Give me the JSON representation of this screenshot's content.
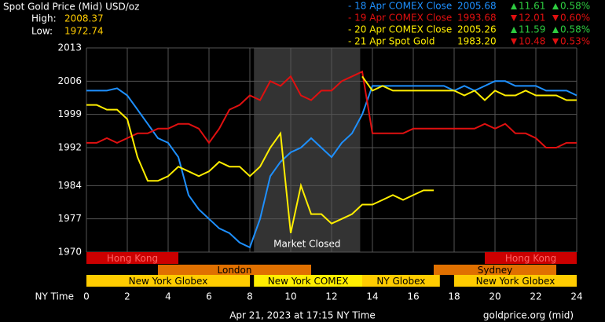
{
  "chart_data": {
    "type": "line",
    "title": "Spot Gold Price (Mid) USD/oz",
    "high_label": "High:",
    "high": "2008.37",
    "low_label": "Low:",
    "low": "1972.74",
    "x_label": "NY Time",
    "footer": "Apr 21, 2023 at 17:15 NY Time",
    "source": "goldprice.org (mid)",
    "xlim": [
      0,
      24
    ],
    "xticks": [
      0,
      2,
      4,
      6,
      8,
      10,
      12,
      14,
      16,
      18,
      20,
      22,
      24
    ],
    "ylim": [
      1970,
      2013
    ],
    "yticks": [
      2013,
      2006,
      1999,
      1992,
      1984,
      1977,
      1970
    ],
    "grid": true,
    "x": [
      0,
      0.5,
      1,
      1.5,
      2,
      2.5,
      3,
      3.5,
      4,
      4.5,
      5,
      5.5,
      6,
      6.5,
      7,
      7.5,
      8,
      8.5,
      9,
      9.5,
      10,
      10.5,
      11,
      11.5,
      12,
      12.5,
      13,
      13.5,
      14,
      14.5,
      15,
      15.5,
      16,
      16.5,
      17,
      17.5,
      18,
      18.5,
      19,
      19.5,
      20,
      20.5,
      21,
      21.5,
      22,
      22.5,
      23,
      23.5,
      24
    ],
    "series": [
      {
        "name": "- 18 Apr COMEX Close",
        "color": "#1e90ff",
        "close": "2005.68",
        "change": "11.61",
        "change_pct": "0.58%",
        "direction": "up",
        "values": [
          2004,
          2004,
          2004,
          2004.5,
          2003,
          2000,
          1997,
          1994,
          1993,
          1990,
          1982,
          1979,
          1977,
          1975,
          1974,
          1972,
          1971,
          1977,
          1986,
          1989,
          1991,
          1992,
          1994,
          1992,
          1990,
          1993,
          1995,
          1999,
          2005,
          2005,
          2005,
          2005,
          2005,
          2005,
          2005,
          2005,
          2004,
          2005,
          2004,
          2005,
          2006,
          2006,
          2005,
          2005,
          2005,
          2004,
          2004,
          2004,
          2003
        ]
      },
      {
        "name": "- 19 Apr COMEX Close",
        "color": "#e01010",
        "close": "1993.68",
        "change": "12.01",
        "change_pct": "0.60%",
        "direction": "down",
        "values": [
          1993,
          1993,
          1994,
          1993,
          1994,
          1995,
          1995,
          1996,
          1996,
          1997,
          1997,
          1996,
          1993,
          1996,
          2000,
          2001,
          2003,
          2002,
          2006,
          2005,
          2007,
          2003,
          2002,
          2004,
          2004,
          2006,
          2007,
          2008,
          1995,
          1995,
          1995,
          1995,
          1996,
          1996,
          1996,
          1996,
          1996,
          1996,
          1996,
          1997,
          1996,
          1997,
          1995,
          1995,
          1994,
          1992,
          1992,
          1993,
          1993
        ]
      },
      {
        "name": "- 20 Apr COMEX Close",
        "color": "#ffee00",
        "close": "2005.26",
        "change": "11.59",
        "change_pct": "0.58%",
        "direction": "up",
        "values": [
          null,
          null,
          null,
          null,
          null,
          null,
          null,
          null,
          null,
          null,
          null,
          null,
          null,
          null,
          null,
          null,
          null,
          null,
          null,
          null,
          null,
          null,
          null,
          null,
          null,
          null,
          null,
          2007,
          2004,
          2005,
          2004,
          2004,
          2004,
          2004,
          2004,
          2004,
          2004,
          2003,
          2004,
          2002,
          2004,
          2003,
          2003,
          2004,
          2003,
          2003,
          2003,
          2002,
          2002
        ]
      },
      {
        "name": "- 21 Apr Spot Gold",
        "color": "#ffee00",
        "close": "1983.20",
        "change": "10.48",
        "change_pct": "0.53%",
        "direction": "down",
        "values": [
          2001,
          2001,
          2000,
          2000,
          1998,
          1990,
          1985,
          1985,
          1986,
          1988,
          1987,
          1986,
          1987,
          1989,
          1988,
          1988,
          1986,
          1988,
          1992,
          1995,
          1974,
          1984,
          1978,
          1978,
          1976,
          1977,
          1978,
          1980,
          1980,
          1981,
          1982,
          1981,
          1982,
          1983,
          1983,
          null,
          null,
          null,
          null,
          null,
          null,
          null,
          null,
          null,
          null,
          null,
          null,
          null,
          null
        ]
      }
    ],
    "closed_region": {
      "label": "Market Closed",
      "start": 8.2,
      "end": 13.4
    },
    "session_rows": [
      [
        {
          "name": "Hong Kong",
          "start": 0,
          "end": 4.5,
          "color": "#cc0000"
        },
        {
          "name": "Hong Kong",
          "start": 19.5,
          "end": 24,
          "color": "#cc0000"
        }
      ],
      [
        {
          "name": "London",
          "start": 3.5,
          "end": 11,
          "color": "#e07000"
        },
        {
          "name": "Sydney",
          "start": 17,
          "end": 23,
          "color": "#e07000"
        }
      ],
      [
        {
          "name": "New York Globex",
          "start": 0,
          "end": 8,
          "color": "#ffcc00"
        },
        {
          "name": "New York COMEX",
          "start": 8.2,
          "end": 13.5,
          "color": "#ffee00"
        },
        {
          "name": "NY Globex",
          "start": 13.5,
          "end": 17.3,
          "color": "#ffcc00"
        },
        {
          "name": "New York Globex",
          "start": 18,
          "end": 24,
          "color": "#ffcc00"
        }
      ]
    ]
  }
}
